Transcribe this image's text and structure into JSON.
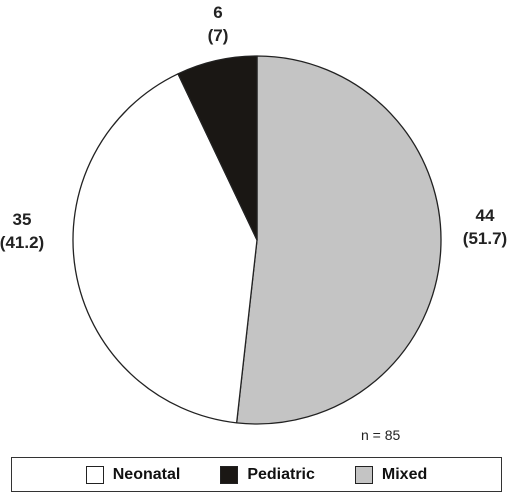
{
  "chart_data": {
    "type": "pie",
    "slices": [
      {
        "label": "Neonatal",
        "value": 35,
        "percent": 41.2,
        "count_text": "35",
        "percent_text": "(41.2)",
        "color": "#ffffff"
      },
      {
        "label": "Pediatric",
        "value": 6,
        "percent": 7,
        "count_text": "6",
        "percent_text": "(7)",
        "color": "#1a1714"
      },
      {
        "label": "Mixed",
        "value": 44,
        "percent": 51.7,
        "count_text": "44",
        "percent_text": "(51.7)",
        "color": "#c4c4c4"
      }
    ],
    "note": "n = 85",
    "legend": [
      {
        "label": "Neonatal",
        "color": "#ffffff"
      },
      {
        "label": "Pediatric",
        "color": "#1a1714"
      },
      {
        "label": "Mixed",
        "color": "#c4c4c4"
      }
    ],
    "legend_position": "bottom"
  }
}
